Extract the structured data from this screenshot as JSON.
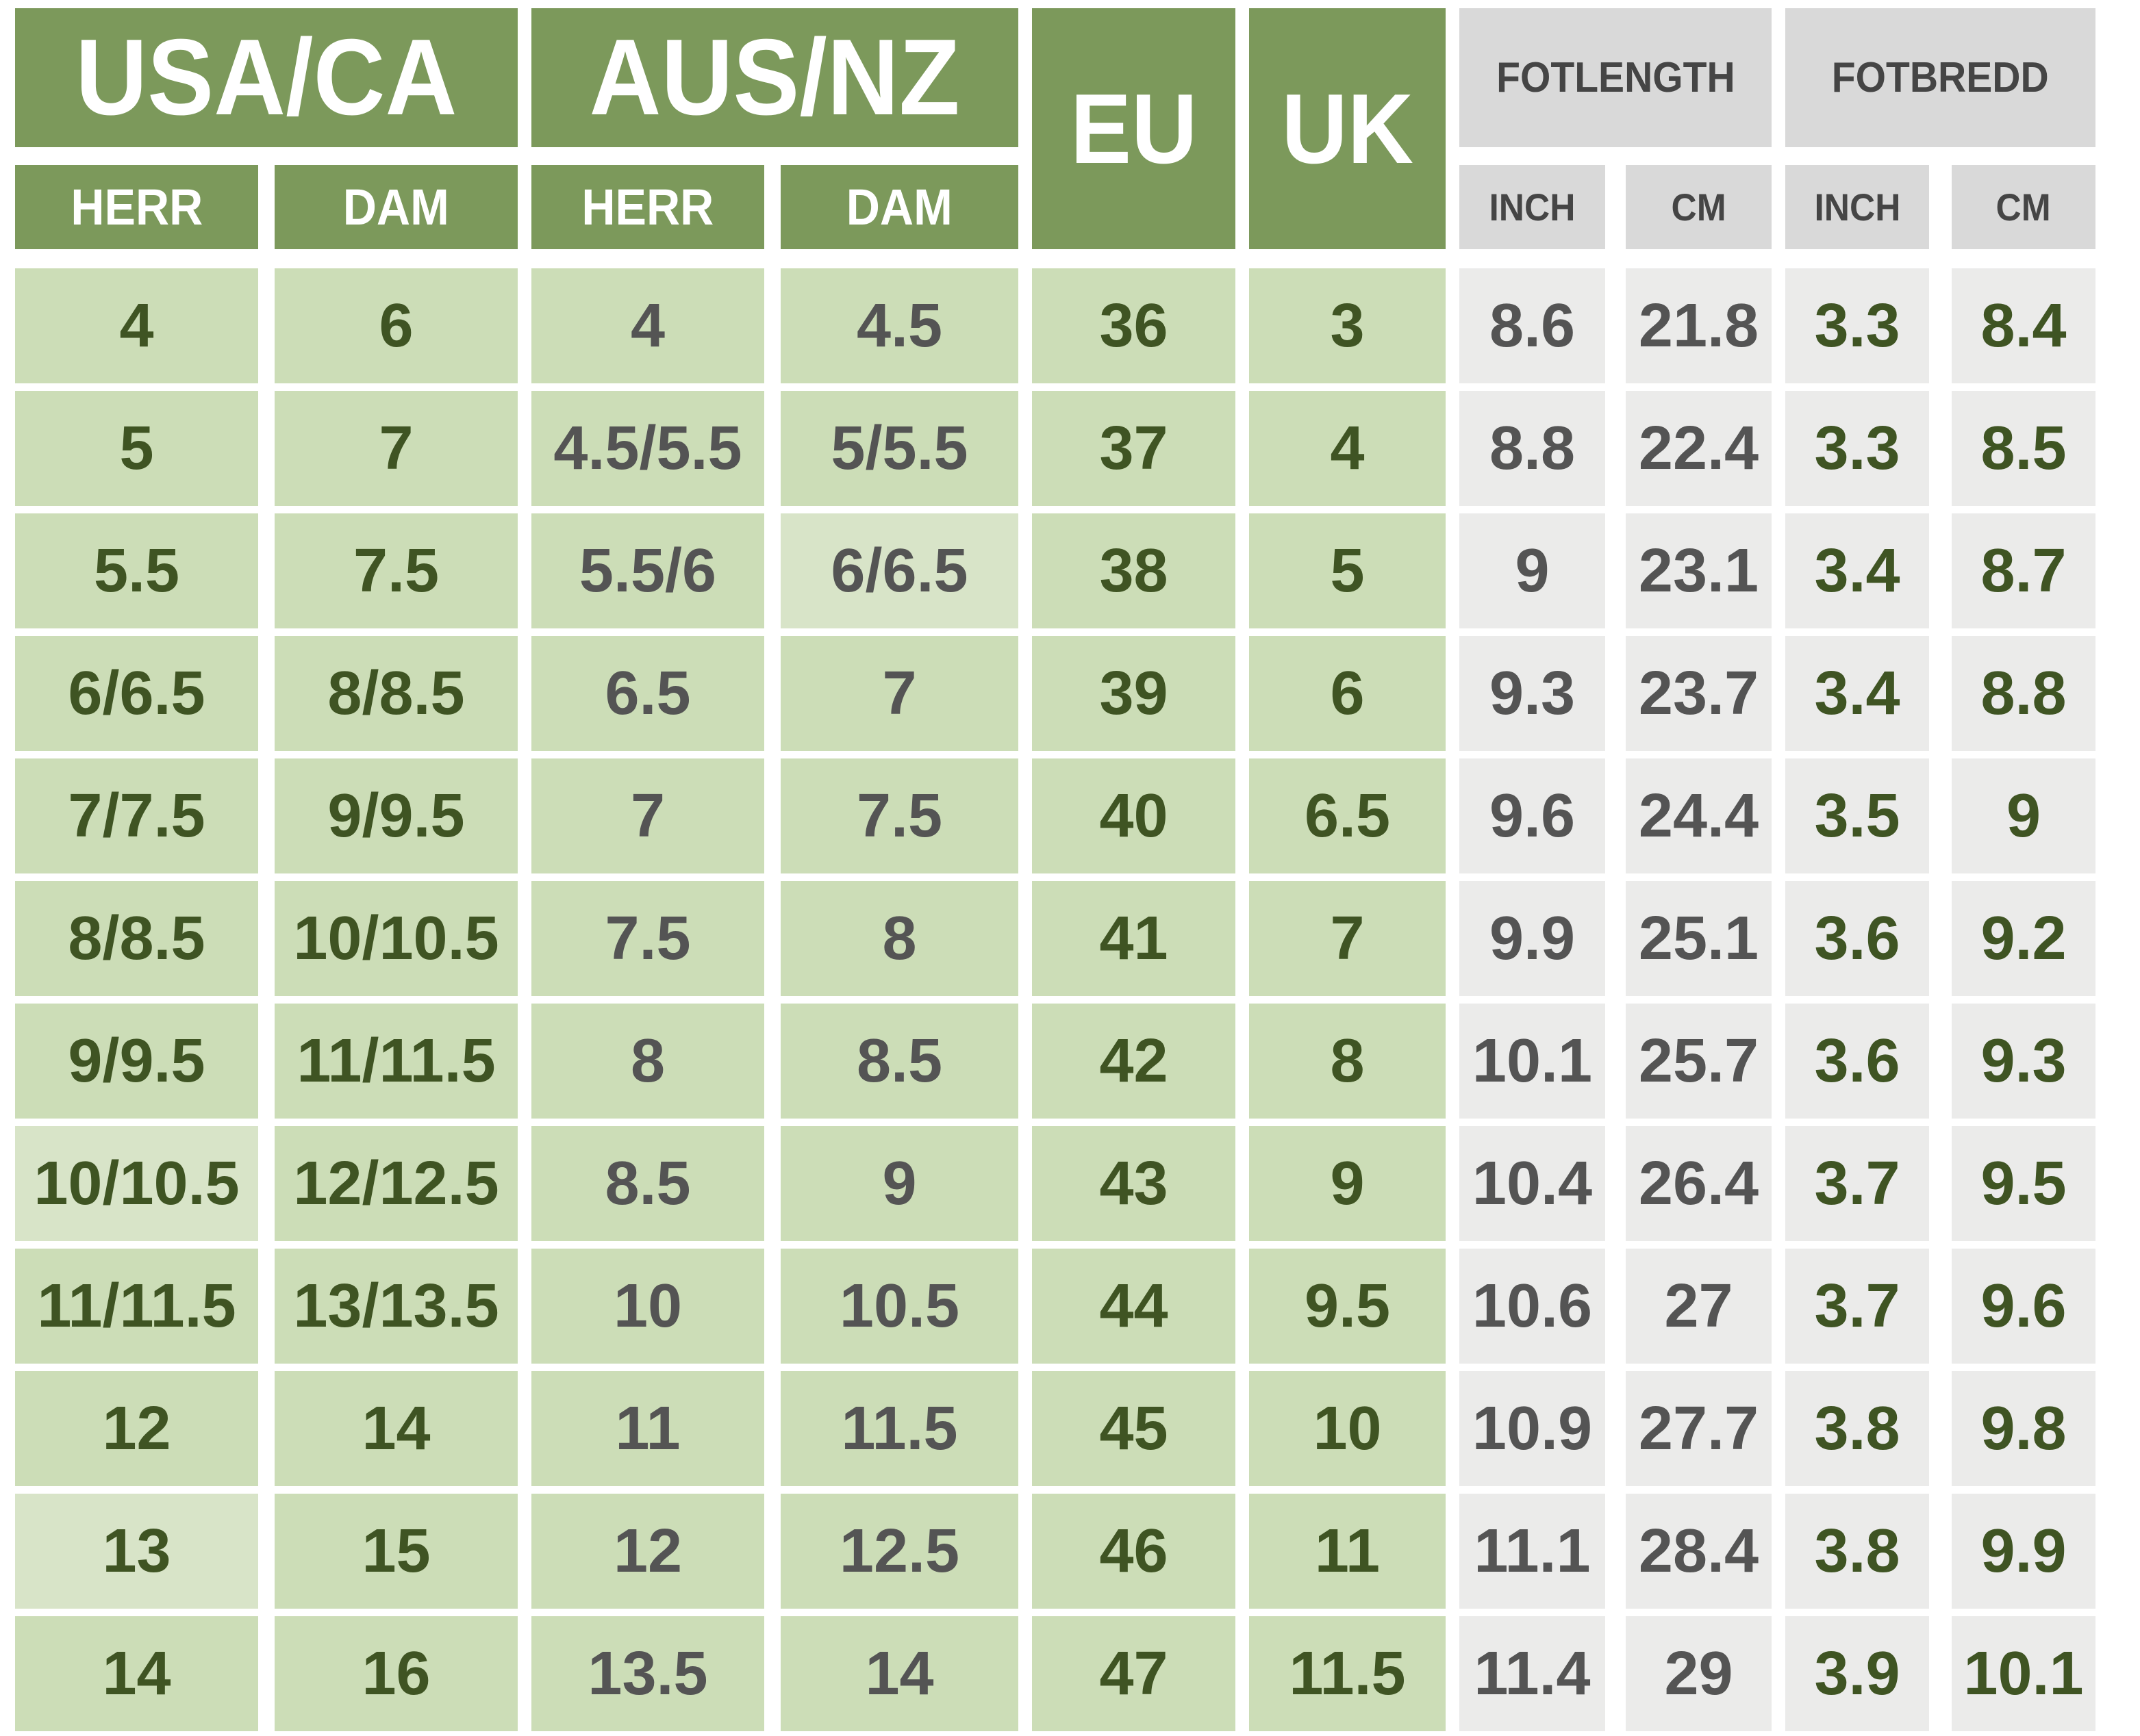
{
  "header": {
    "usa_ca": "USA/CA",
    "aus_nz": "AUS/NZ",
    "eu": "EU",
    "uk": "UK",
    "fotlength": "FOTLENGTH",
    "fotbredd": "FOTBREDD"
  },
  "subheader": {
    "herr": "HERR",
    "dam": "DAM",
    "inch": "INCH",
    "cm": "CM"
  },
  "colors": {
    "header_green": "#7c995b",
    "cell_green": "#ccddb7",
    "cell_green_light": "#d8e4c8",
    "header_gray": "#d9d9d9",
    "cell_gray": "#ebebea",
    "text_green": "#3f5423",
    "text_gray": "#545454",
    "header_gray_text": "#454545",
    "header_text_white": "#ffffff"
  },
  "chart_data": {
    "type": "table",
    "columns": [
      "USA/CA HERR",
      "USA/CA DAM",
      "AUS/NZ HERR",
      "AUS/NZ DAM",
      "EU",
      "UK",
      "FOTLENGTH INCH",
      "FOTLENGTH CM",
      "FOTBREDD INCH",
      "FOTBREDD CM"
    ],
    "rows": [
      [
        "4",
        "6",
        "4",
        "4.5",
        "36",
        "3",
        "8.6",
        "21.8",
        "3.3",
        "8.4"
      ],
      [
        "5",
        "7",
        "4.5/5.5",
        "5/5.5",
        "37",
        "4",
        "8.8",
        "22.4",
        "3.3",
        "8.5"
      ],
      [
        "5.5",
        "7.5",
        "5.5/6",
        "6/6.5",
        "38",
        "5",
        "9",
        "23.1",
        "3.4",
        "8.7"
      ],
      [
        "6/6.5",
        "8/8.5",
        "6.5",
        "7",
        "39",
        "6",
        "9.3",
        "23.7",
        "3.4",
        "8.8"
      ],
      [
        "7/7.5",
        "9/9.5",
        "7",
        "7.5",
        "40",
        "6.5",
        "9.6",
        "24.4",
        "3.5",
        "9"
      ],
      [
        "8/8.5",
        "10/10.5",
        "7.5",
        "8",
        "41",
        "7",
        "9.9",
        "25.1",
        "3.6",
        "9.2"
      ],
      [
        "9/9.5",
        "11/11.5",
        "8",
        "8.5",
        "42",
        "8",
        "10.1",
        "25.7",
        "3.6",
        "9.3"
      ],
      [
        "10/10.5",
        "12/12.5",
        "8.5",
        "9",
        "43",
        "9",
        "10.4",
        "26.4",
        "3.7",
        "9.5"
      ],
      [
        "11/11.5",
        "13/13.5",
        "10",
        "10.5",
        "44",
        "9.5",
        "10.6",
        "27",
        "3.7",
        "9.6"
      ],
      [
        "12",
        "14",
        "11",
        "11.5",
        "45",
        "10",
        "10.9",
        "27.7",
        "3.8",
        "9.8"
      ],
      [
        "13",
        "15",
        "12",
        "12.5",
        "46",
        "11",
        "11.1",
        "28.4",
        "3.8",
        "9.9"
      ],
      [
        "14",
        "16",
        "13.5",
        "14",
        "47",
        "11.5",
        "11.4",
        "29",
        "3.9",
        "10.1"
      ]
    ]
  }
}
